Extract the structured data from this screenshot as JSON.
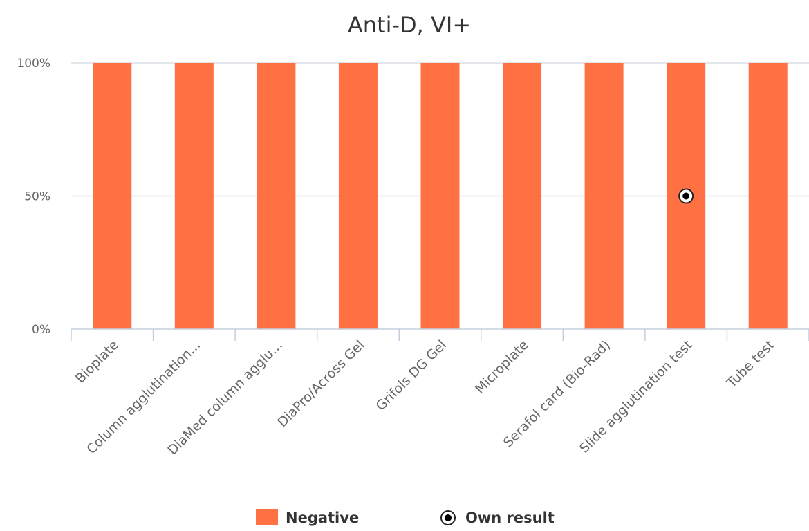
{
  "chart_data": {
    "type": "bar",
    "title": "Anti-D, VI+",
    "categories": [
      "Bioplate",
      "Column agglutination...",
      "DiaMed column agglu...",
      "DiaPro/Across Gel",
      "Grifols DG Gel",
      "Microplate",
      "Serafol card (Bio-Rad)",
      "Slide agglutination test",
      "Tube test"
    ],
    "series": [
      {
        "name": "Negative",
        "type": "bar",
        "color": "#ff7043",
        "values": [
          100,
          100,
          100,
          100,
          100,
          100,
          100,
          100,
          100
        ]
      },
      {
        "name": "Own result",
        "type": "scatter",
        "marker": "circle-dot",
        "points": [
          {
            "category": "Slide agglutination test",
            "value": 50
          }
        ]
      }
    ],
    "yticks": [
      {
        "value": 0,
        "label": "0%"
      },
      {
        "value": 50,
        "label": "50%"
      },
      {
        "value": 100,
        "label": "100%"
      }
    ],
    "ylim": [
      0,
      100
    ],
    "xlabel": "",
    "ylabel": "",
    "grid": true,
    "legend_position": "bottom-center"
  }
}
